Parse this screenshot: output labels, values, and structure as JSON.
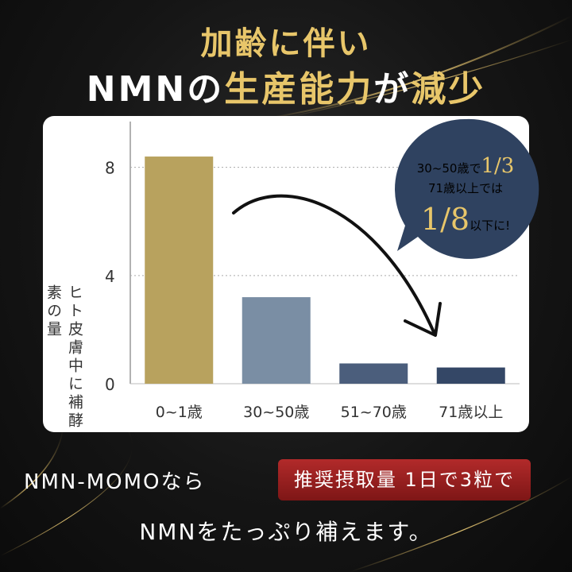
{
  "headline": {
    "line1": "加齢に伴い",
    "line2_white": "NMNの",
    "line2_gold": "生産能力",
    "line2_white2": "が",
    "line2_gold2": "減少"
  },
  "chart_data": {
    "type": "bar",
    "categories": [
      "0~1歳",
      "30~50歳",
      "51~70歳",
      "71歳以上"
    ],
    "values": [
      8.4,
      3.2,
      0.75,
      0.6
    ],
    "ylabel": "ヒト皮膚中に補酵素の量",
    "yticks": [
      0,
      4,
      8
    ],
    "ylim": [
      0,
      9.4
    ],
    "grid": true,
    "bar_colors": [
      "#b8a25e",
      "#7a8ea4",
      "#4b5e7c",
      "#344766"
    ],
    "annotation": {
      "line1_prefix": "30~50歳で",
      "line1_value": "1/3",
      "line2": "71歳以上では",
      "line3_value": "1/8",
      "line3_suffix": "以下に!"
    }
  },
  "bottom": {
    "prefix": "NMN-MOMOなら",
    "badge": "推奨摂取量 1日で3粒で",
    "line2": "NMNをたっぷり補えます。"
  },
  "colors": {
    "gold": "#e8c66a",
    "bubble": "#2f4260",
    "badge": "#9e2020"
  }
}
